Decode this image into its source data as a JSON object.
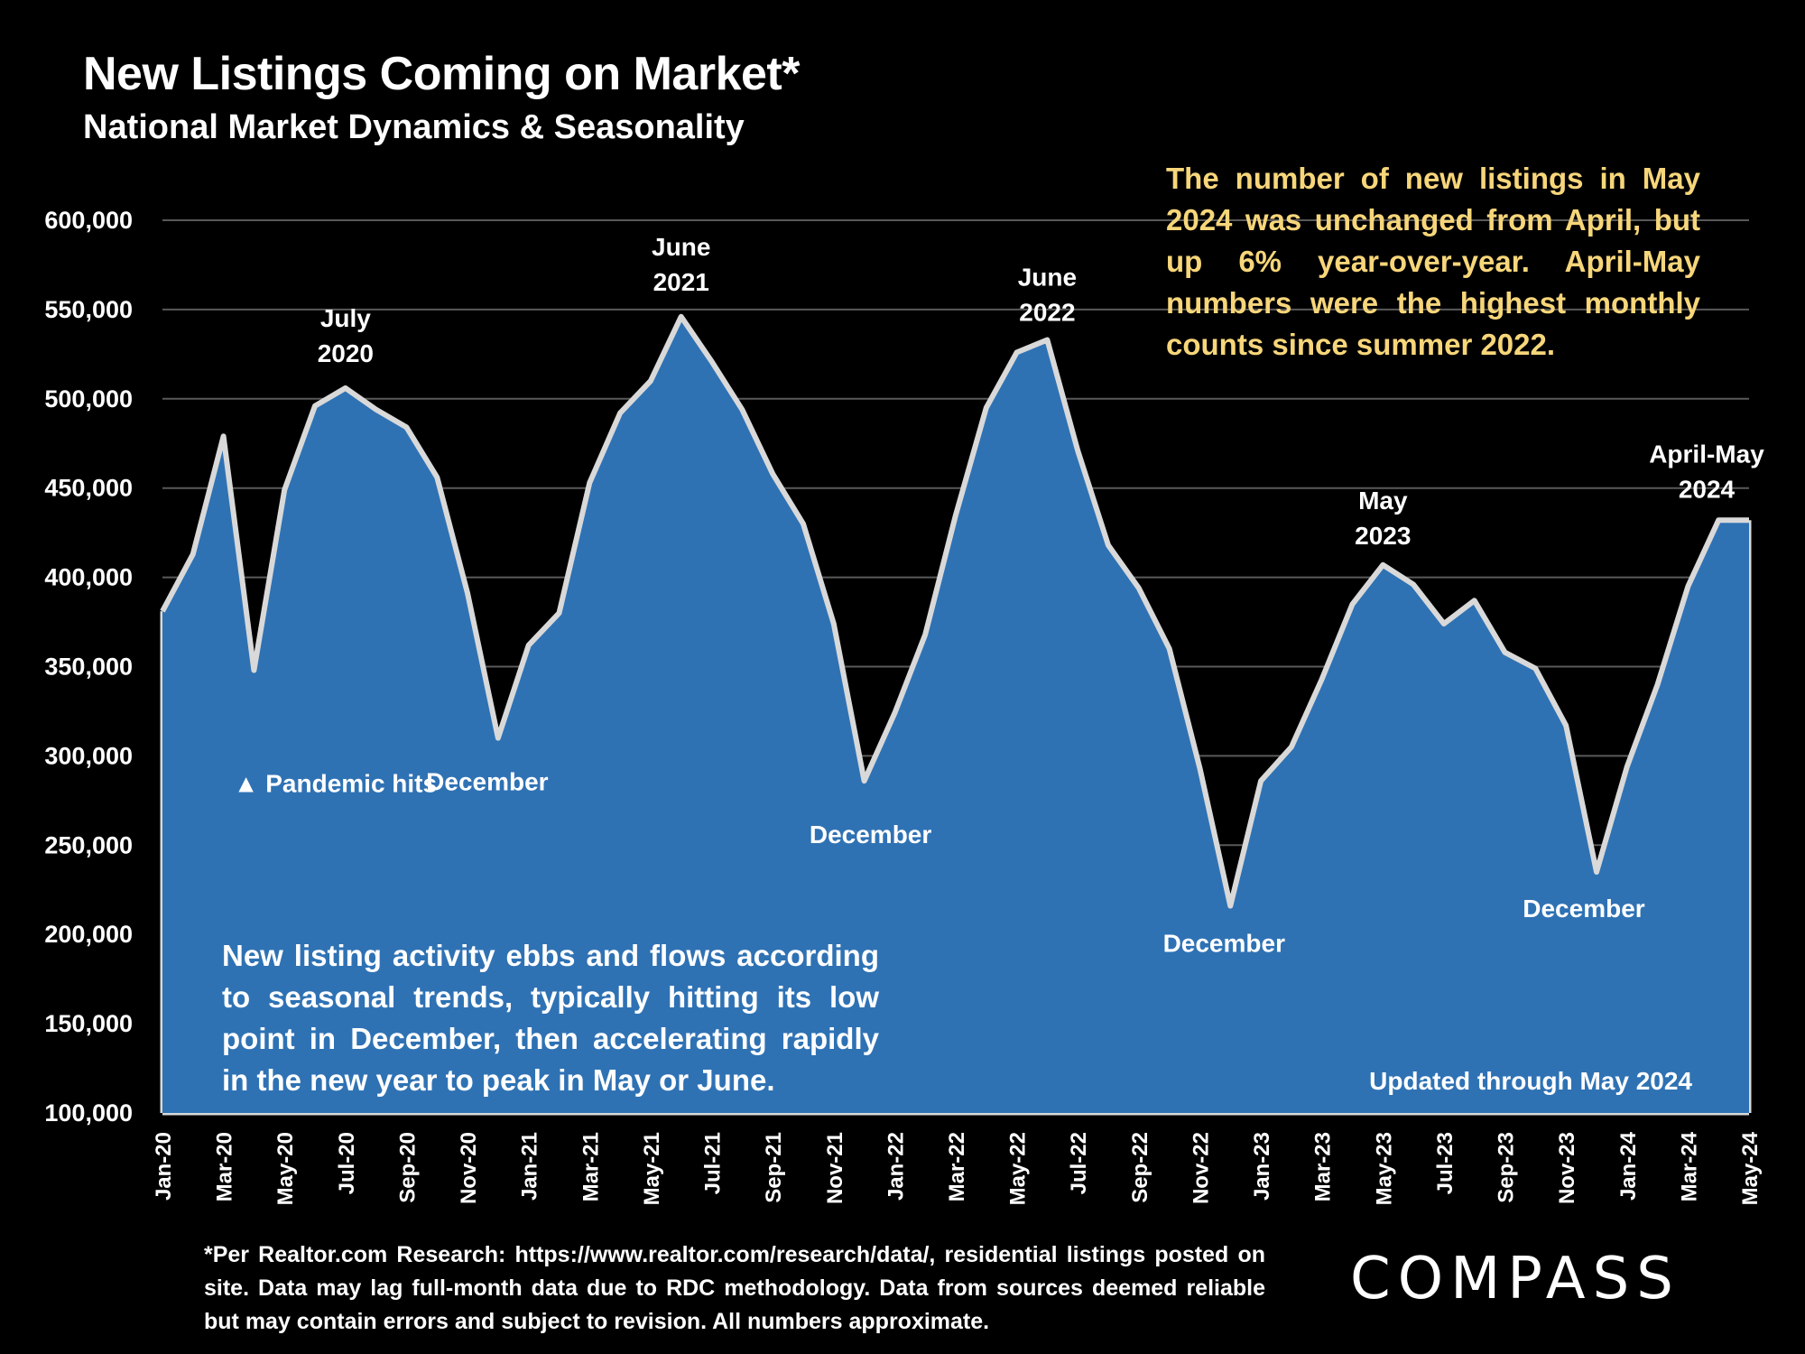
{
  "chart_data": {
    "type": "area",
    "title": "New Listings Coming on Market*",
    "subtitle": "National Market Dynamics & Seasonality",
    "ylim": [
      100000,
      600000
    ],
    "yticks": [
      100000,
      150000,
      200000,
      250000,
      300000,
      350000,
      400000,
      450000,
      500000,
      550000,
      600000
    ],
    "ytick_labels": [
      "100,000",
      "150,000",
      "200,000",
      "250,000",
      "300,000",
      "350,000",
      "400,000",
      "450,000",
      "500,000",
      "550,000",
      "600,000"
    ],
    "grid": true,
    "x_labels": [
      "Jan-20",
      "Mar-20",
      "May-20",
      "Jul-20",
      "Sep-20",
      "Nov-20",
      "Jan-21",
      "Mar-21",
      "May-21",
      "Jul-21",
      "Sep-21",
      "Nov-21",
      "Jan-22",
      "Mar-22",
      "May-22",
      "Jul-22",
      "Sep-22",
      "Nov-22",
      "Jan-23",
      "Mar-23",
      "May-23",
      "Jul-23",
      "Sep-23",
      "Nov-23",
      "Jan-24",
      "Mar-24",
      "May-24"
    ],
    "values": [
      381000,
      413000,
      479000,
      348000,
      449000,
      496000,
      506000,
      494000,
      484000,
      456000,
      391000,
      310000,
      362000,
      380000,
      453000,
      492000,
      510000,
      546000,
      521000,
      494000,
      458000,
      430000,
      374000,
      286000,
      324000,
      368000,
      435000,
      495000,
      526000,
      533000,
      471000,
      418000,
      394000,
      360000,
      293000,
      216000,
      286000,
      305000,
      343000,
      385000,
      407000,
      396000,
      374000,
      387000,
      358000,
      349000,
      317000,
      235000,
      294000,
      340000,
      395000,
      432000,
      432000
    ],
    "annotations": [
      {
        "label": "July",
        "label2": "2020",
        "month_index": 6
      },
      {
        "label": "June",
        "label2": "2021",
        "month_index": 17
      },
      {
        "label": "June",
        "label2": "2022",
        "month_index": 29
      },
      {
        "label": "May",
        "label2": "2023",
        "month_index": 40
      },
      {
        "label": "April-May",
        "label2": "2024",
        "month_index": 52
      },
      {
        "label": "▲ Pandemic hits",
        "month_index": 3
      },
      {
        "label": "December",
        "month_index": 11
      },
      {
        "label": "December",
        "month_index": 23
      },
      {
        "label": "December",
        "month_index": 35
      },
      {
        "label": "December",
        "month_index": 47
      }
    ],
    "updated_label": "Updated through May 2024"
  },
  "notes": {
    "top": "The number of new listings in May 2024 was unchanged from April, but up 6% year-over-year. April-May numbers were the highest monthly counts since summer 2022.",
    "bottom": "New listing activity ebbs and flows according to seasonal trends, typically hitting its low point in December, then accelerating rapidly in the new year to peak in May or June."
  },
  "footnote": "*Per Realtor.com Research: https://www.realtor.com/research/data/, residential listings posted on site. Data may lag full-month data due to RDC methodology. Data from sources deemed reliable but may contain errors and subject to revision. All numbers approximate.",
  "logo": "COMPASS",
  "colors": {
    "area": "#2f72b4",
    "line": "#d9d9d9",
    "note": "#f7d67a",
    "background": "#000000"
  }
}
